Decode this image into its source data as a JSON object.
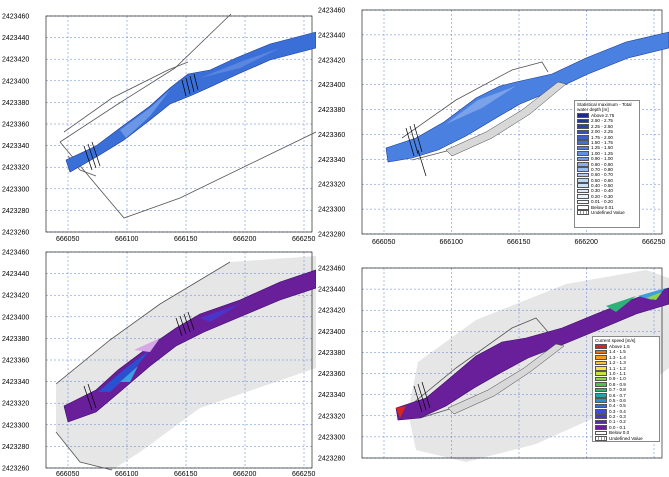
{
  "panels": [
    {
      "id": "depth-existing",
      "y_ticks": [
        "2423460",
        "2423440",
        "2423420",
        "2423400",
        "2423380",
        "2423360",
        "2423340",
        "2423320",
        "2423300",
        "2423280",
        "2423260"
      ],
      "x_ticks": [
        "666050",
        "666100",
        "666150",
        "666200",
        "666250"
      ],
      "fill_color": "#3a6fd8",
      "background_color": "#ffffff"
    },
    {
      "id": "depth-proposed",
      "y_ticks": [
        "2423460",
        "2423440",
        "2423420",
        "2423400",
        "2423380",
        "2423360",
        "2423340",
        "2423320",
        "2423300",
        "2423280"
      ],
      "x_ticks": [
        "666050",
        "666100",
        "666150",
        "666200",
        "666250"
      ],
      "fill_color": "#4a80e0",
      "background_color": "#ffffff"
    },
    {
      "id": "speed-existing",
      "y_ticks": [
        "2423460",
        "2423440",
        "2423420",
        "2423400",
        "2423380",
        "2423360",
        "2423340",
        "2423320",
        "2423300",
        "2423280",
        "2423260"
      ],
      "x_ticks": [
        "666050",
        "666100",
        "666150",
        "666200",
        "666250"
      ],
      "fill_color": "#6a1f9a",
      "background_color": "#e6e6e6"
    },
    {
      "id": "speed-proposed",
      "y_ticks": [
        "2423460",
        "2423440",
        "2423420",
        "2423400",
        "2423380",
        "2423360",
        "2423340",
        "2423320",
        "2423300",
        "2423280"
      ],
      "x_ticks": [],
      "fill_color": "#6a1f9a",
      "background_color": "#e6e6e6"
    }
  ],
  "depth_legend": {
    "title": "Statistical maximum - Total water depth [m]",
    "items": [
      {
        "label": "Above 2.75",
        "color": "#1a2a8a"
      },
      {
        "label": "2.50 - 2.75",
        "color": "#22359a"
      },
      {
        "label": "2.25 - 2.50",
        "color": "#2a42aa"
      },
      {
        "label": "2.00 - 2.25",
        "color": "#3350bb"
      },
      {
        "label": "1.75 - 2.00",
        "color": "#3d5fc8"
      },
      {
        "label": "1.50 - 1.75",
        "color": "#486ed4"
      },
      {
        "label": "1.25 - 1.50",
        "color": "#5580dc"
      },
      {
        "label": "1.00 - 1.25",
        "color": "#6490e2"
      },
      {
        "label": "0.90 - 1.00",
        "color": "#75a0e8"
      },
      {
        "label": "0.80 - 0.90",
        "color": "#86afed"
      },
      {
        "label": "0.70 - 0.80",
        "color": "#98bdf0"
      },
      {
        "label": "0.60 - 0.70",
        "color": "#aacaf3"
      },
      {
        "label": "0.50 - 0.60",
        "color": "#bcd6f5"
      },
      {
        "label": "0.40 - 0.50",
        "color": "#cde1f7"
      },
      {
        "label": "0.30 - 0.40",
        "color": "#dcebf9"
      },
      {
        "label": "0.20 - 0.30",
        "color": "#e8f2fb"
      },
      {
        "label": "0.01 - 0.20",
        "color": "#f3f8fd"
      },
      {
        "label": "Below 0.01",
        "color": "#ffffff"
      },
      {
        "label": "Undefined Value",
        "color": "under"
      }
    ]
  },
  "speed_legend": {
    "title": "Current speed [m/s]",
    "items": [
      {
        "label": "Above 1.5",
        "color": "#d7261e"
      },
      {
        "label": "1.4 - 1.5",
        "color": "#ef6a1c"
      },
      {
        "label": "1.3 - 1.4",
        "color": "#f79a1e"
      },
      {
        "label": "1.2 - 1.3",
        "color": "#fbc42a"
      },
      {
        "label": "1.1 - 1.2",
        "color": "#f5e83a"
      },
      {
        "label": "1.0 - 1.1",
        "color": "#c9e43c"
      },
      {
        "label": "0.9 - 1.0",
        "color": "#8fd444"
      },
      {
        "label": "0.8 - 0.9",
        "color": "#4fc24e"
      },
      {
        "label": "0.7 - 0.8",
        "color": "#2fb27a"
      },
      {
        "label": "0.6 - 0.7",
        "color": "#27a3a8"
      },
      {
        "label": "0.5 - 0.6",
        "color": "#2a8fd0"
      },
      {
        "label": "0.4 - 0.5",
        "color": "#2f6fe0"
      },
      {
        "label": "0.3 - 0.4",
        "color": "#3a4fd8"
      },
      {
        "label": "0.2 - 0.3",
        "color": "#4a35c8"
      },
      {
        "label": "0.1 - 0.2",
        "color": "#5c28b0"
      },
      {
        "label": "0.0 - 0.1",
        "color": "#6a1f9a"
      },
      {
        "label": "Below 0.0",
        "color": "#ffffff"
      },
      {
        "label": "Undefined Value",
        "color": "under"
      }
    ]
  }
}
